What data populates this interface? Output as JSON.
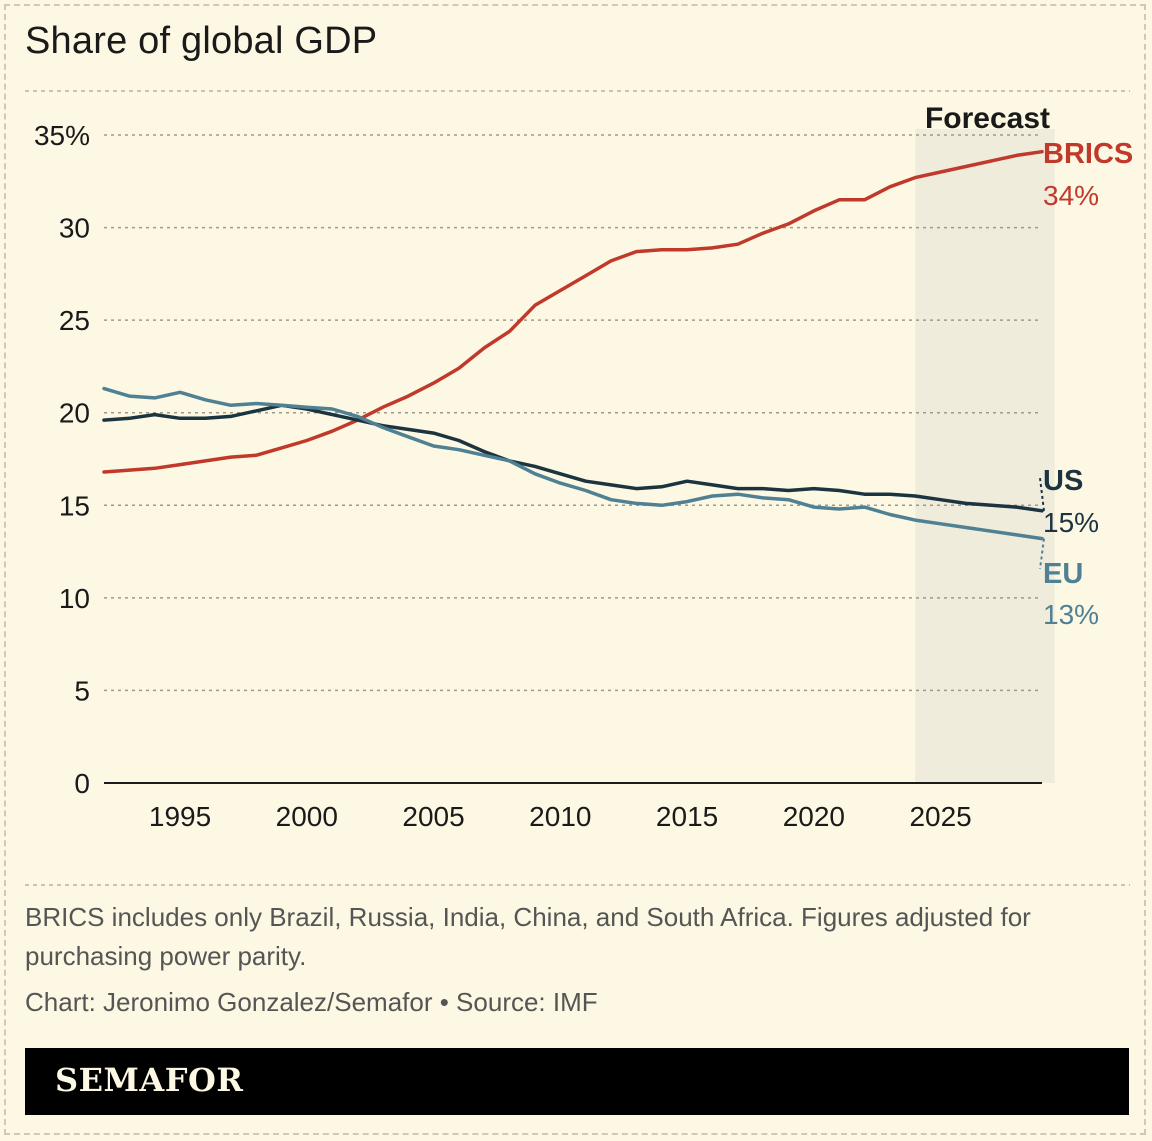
{
  "title": "Share of global GDP",
  "note": "BRICS includes only Brazil, Russia, India, China, and South Africa. Figures adjusted for purchasing power parity.",
  "credit": "Chart: Jeronimo Gonzalez/Semafor • Source: IMF",
  "brand": "SEMAFOR",
  "chart_data": {
    "type": "line",
    "title": "Share of global GDP",
    "xlabel": "",
    "ylabel": "",
    "xlim": [
      1992,
      2029
    ],
    "ylim": [
      0,
      35
    ],
    "x_ticks": [
      1995,
      2000,
      2005,
      2010,
      2015,
      2020,
      2025
    ],
    "y_ticks": [
      0,
      5,
      10,
      15,
      20,
      25,
      30,
      35
    ],
    "y_tick_labels": [
      "0",
      "5",
      "10",
      "15",
      "20",
      "25",
      "30",
      "35%"
    ],
    "grid": "horizontal dashed",
    "forecast": {
      "label": "Forecast",
      "start": 2024,
      "end": 2029
    },
    "x": [
      1992,
      1993,
      1994,
      1995,
      1996,
      1997,
      1998,
      1999,
      2000,
      2001,
      2002,
      2003,
      2004,
      2005,
      2006,
      2007,
      2008,
      2009,
      2010,
      2011,
      2012,
      2013,
      2014,
      2015,
      2016,
      2017,
      2018,
      2019,
      2020,
      2021,
      2022,
      2023,
      2024,
      2025,
      2026,
      2027,
      2028,
      2029
    ],
    "series": [
      {
        "name": "BRICS",
        "end_label": "34%",
        "color": "#c0392b",
        "values": [
          16.8,
          16.9,
          17.0,
          17.2,
          17.4,
          17.6,
          17.7,
          18.1,
          18.5,
          19.0,
          19.6,
          20.3,
          20.9,
          21.6,
          22.4,
          23.5,
          24.4,
          25.8,
          26.6,
          27.4,
          28.2,
          28.7,
          28.8,
          28.8,
          28.9,
          29.1,
          29.7,
          30.2,
          30.9,
          31.5,
          31.5,
          32.2,
          32.7,
          33.0,
          33.3,
          33.6,
          33.9,
          34.1
        ]
      },
      {
        "name": "US",
        "end_label": "15%",
        "color": "#1c3340",
        "values": [
          19.6,
          19.7,
          19.9,
          19.7,
          19.7,
          19.8,
          20.1,
          20.4,
          20.2,
          19.9,
          19.6,
          19.3,
          19.1,
          18.9,
          18.5,
          17.9,
          17.4,
          17.1,
          16.7,
          16.3,
          16.1,
          15.9,
          16.0,
          16.3,
          16.1,
          15.9,
          15.9,
          15.8,
          15.9,
          15.8,
          15.6,
          15.6,
          15.5,
          15.3,
          15.1,
          15.0,
          14.9,
          14.7
        ]
      },
      {
        "name": "EU",
        "end_label": "13%",
        "color": "#4f8093",
        "values": [
          21.3,
          20.9,
          20.8,
          21.1,
          20.7,
          20.4,
          20.5,
          20.4,
          20.3,
          20.2,
          19.8,
          19.2,
          18.7,
          18.2,
          18.0,
          17.7,
          17.4,
          16.7,
          16.2,
          15.8,
          15.3,
          15.1,
          15.0,
          15.2,
          15.5,
          15.6,
          15.4,
          15.3,
          14.9,
          14.8,
          14.9,
          14.5,
          14.2,
          14.0,
          13.8,
          13.6,
          13.4,
          13.2
        ]
      }
    ]
  }
}
